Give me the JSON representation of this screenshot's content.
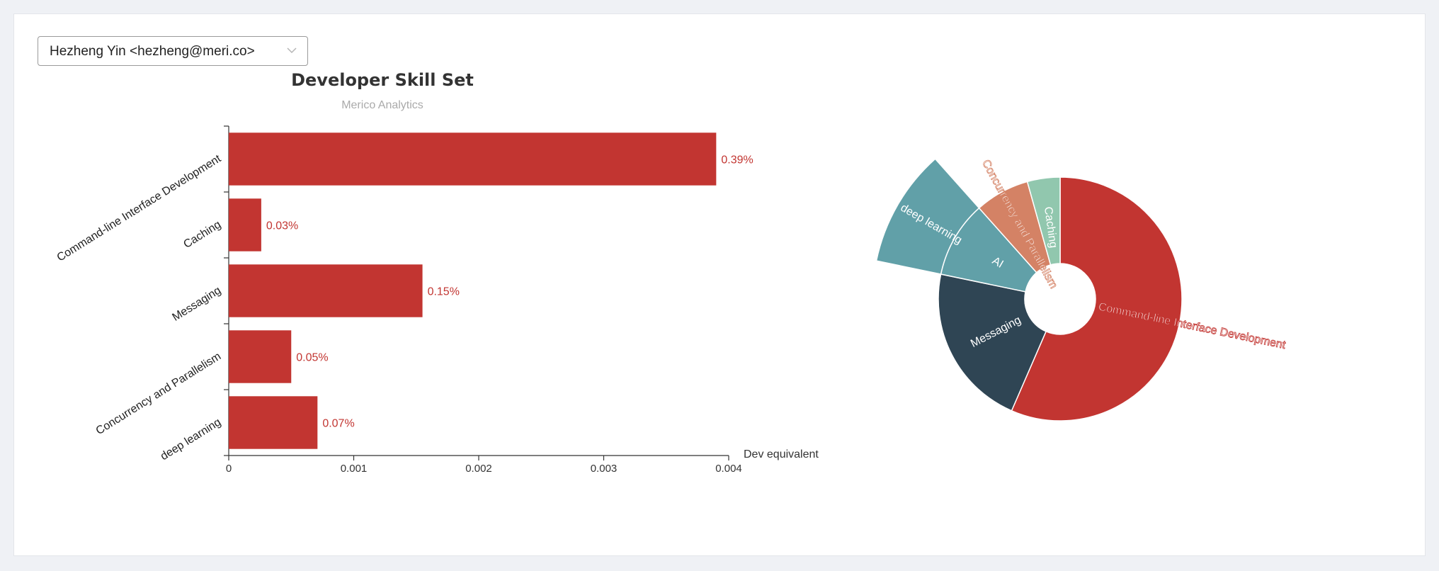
{
  "developer_select": {
    "selected": "Hezheng Yin <hezheng@meri.co>"
  },
  "colors": {
    "bar": "#c23531",
    "bar_label": "#c23531",
    "axis": "#333333",
    "sunburst": [
      "#c23531",
      "#2f4554",
      "#61a0a8",
      "#d48265",
      "#91c7ae"
    ]
  },
  "chart_data": [
    {
      "type": "bar",
      "orientation": "horizontal",
      "title": "Developer Skill Set",
      "subtitle": "Merico Analytics",
      "xlabel": "Dev equivalent",
      "ylabel": "",
      "xlim": [
        0,
        0.004
      ],
      "xticks": [
        "0",
        "0.001",
        "0.002",
        "0.003",
        "0.004"
      ],
      "grid": false,
      "categories": [
        "Command-line Interface Development",
        "Caching",
        "Messaging",
        "Concurrency and Parallelism",
        "deep learning"
      ],
      "values": [
        0.0039,
        0.00026,
        0.00155,
        0.0005,
        0.00071
      ],
      "data_labels": [
        "0.39%",
        "0.03%",
        "0.15%",
        "0.05%",
        "0.07%"
      ]
    },
    {
      "type": "sunburst",
      "inner": [
        {
          "name": "Command-line Interface Development",
          "value": 0.39,
          "color": "#c23531"
        },
        {
          "name": "Messaging",
          "value": 0.15,
          "color": "#2f4554"
        },
        {
          "name": "AI",
          "value": 0.07,
          "color": "#61a0a8"
        },
        {
          "name": "Concurrency and Parallelism",
          "value": 0.05,
          "color": "#d48265"
        },
        {
          "name": "Caching",
          "value": 0.03,
          "color": "#91c7ae"
        }
      ],
      "outer": [
        {
          "name": "deep learning",
          "parent": "AI",
          "value": 0.07,
          "color": "#61a0a8"
        }
      ]
    }
  ]
}
